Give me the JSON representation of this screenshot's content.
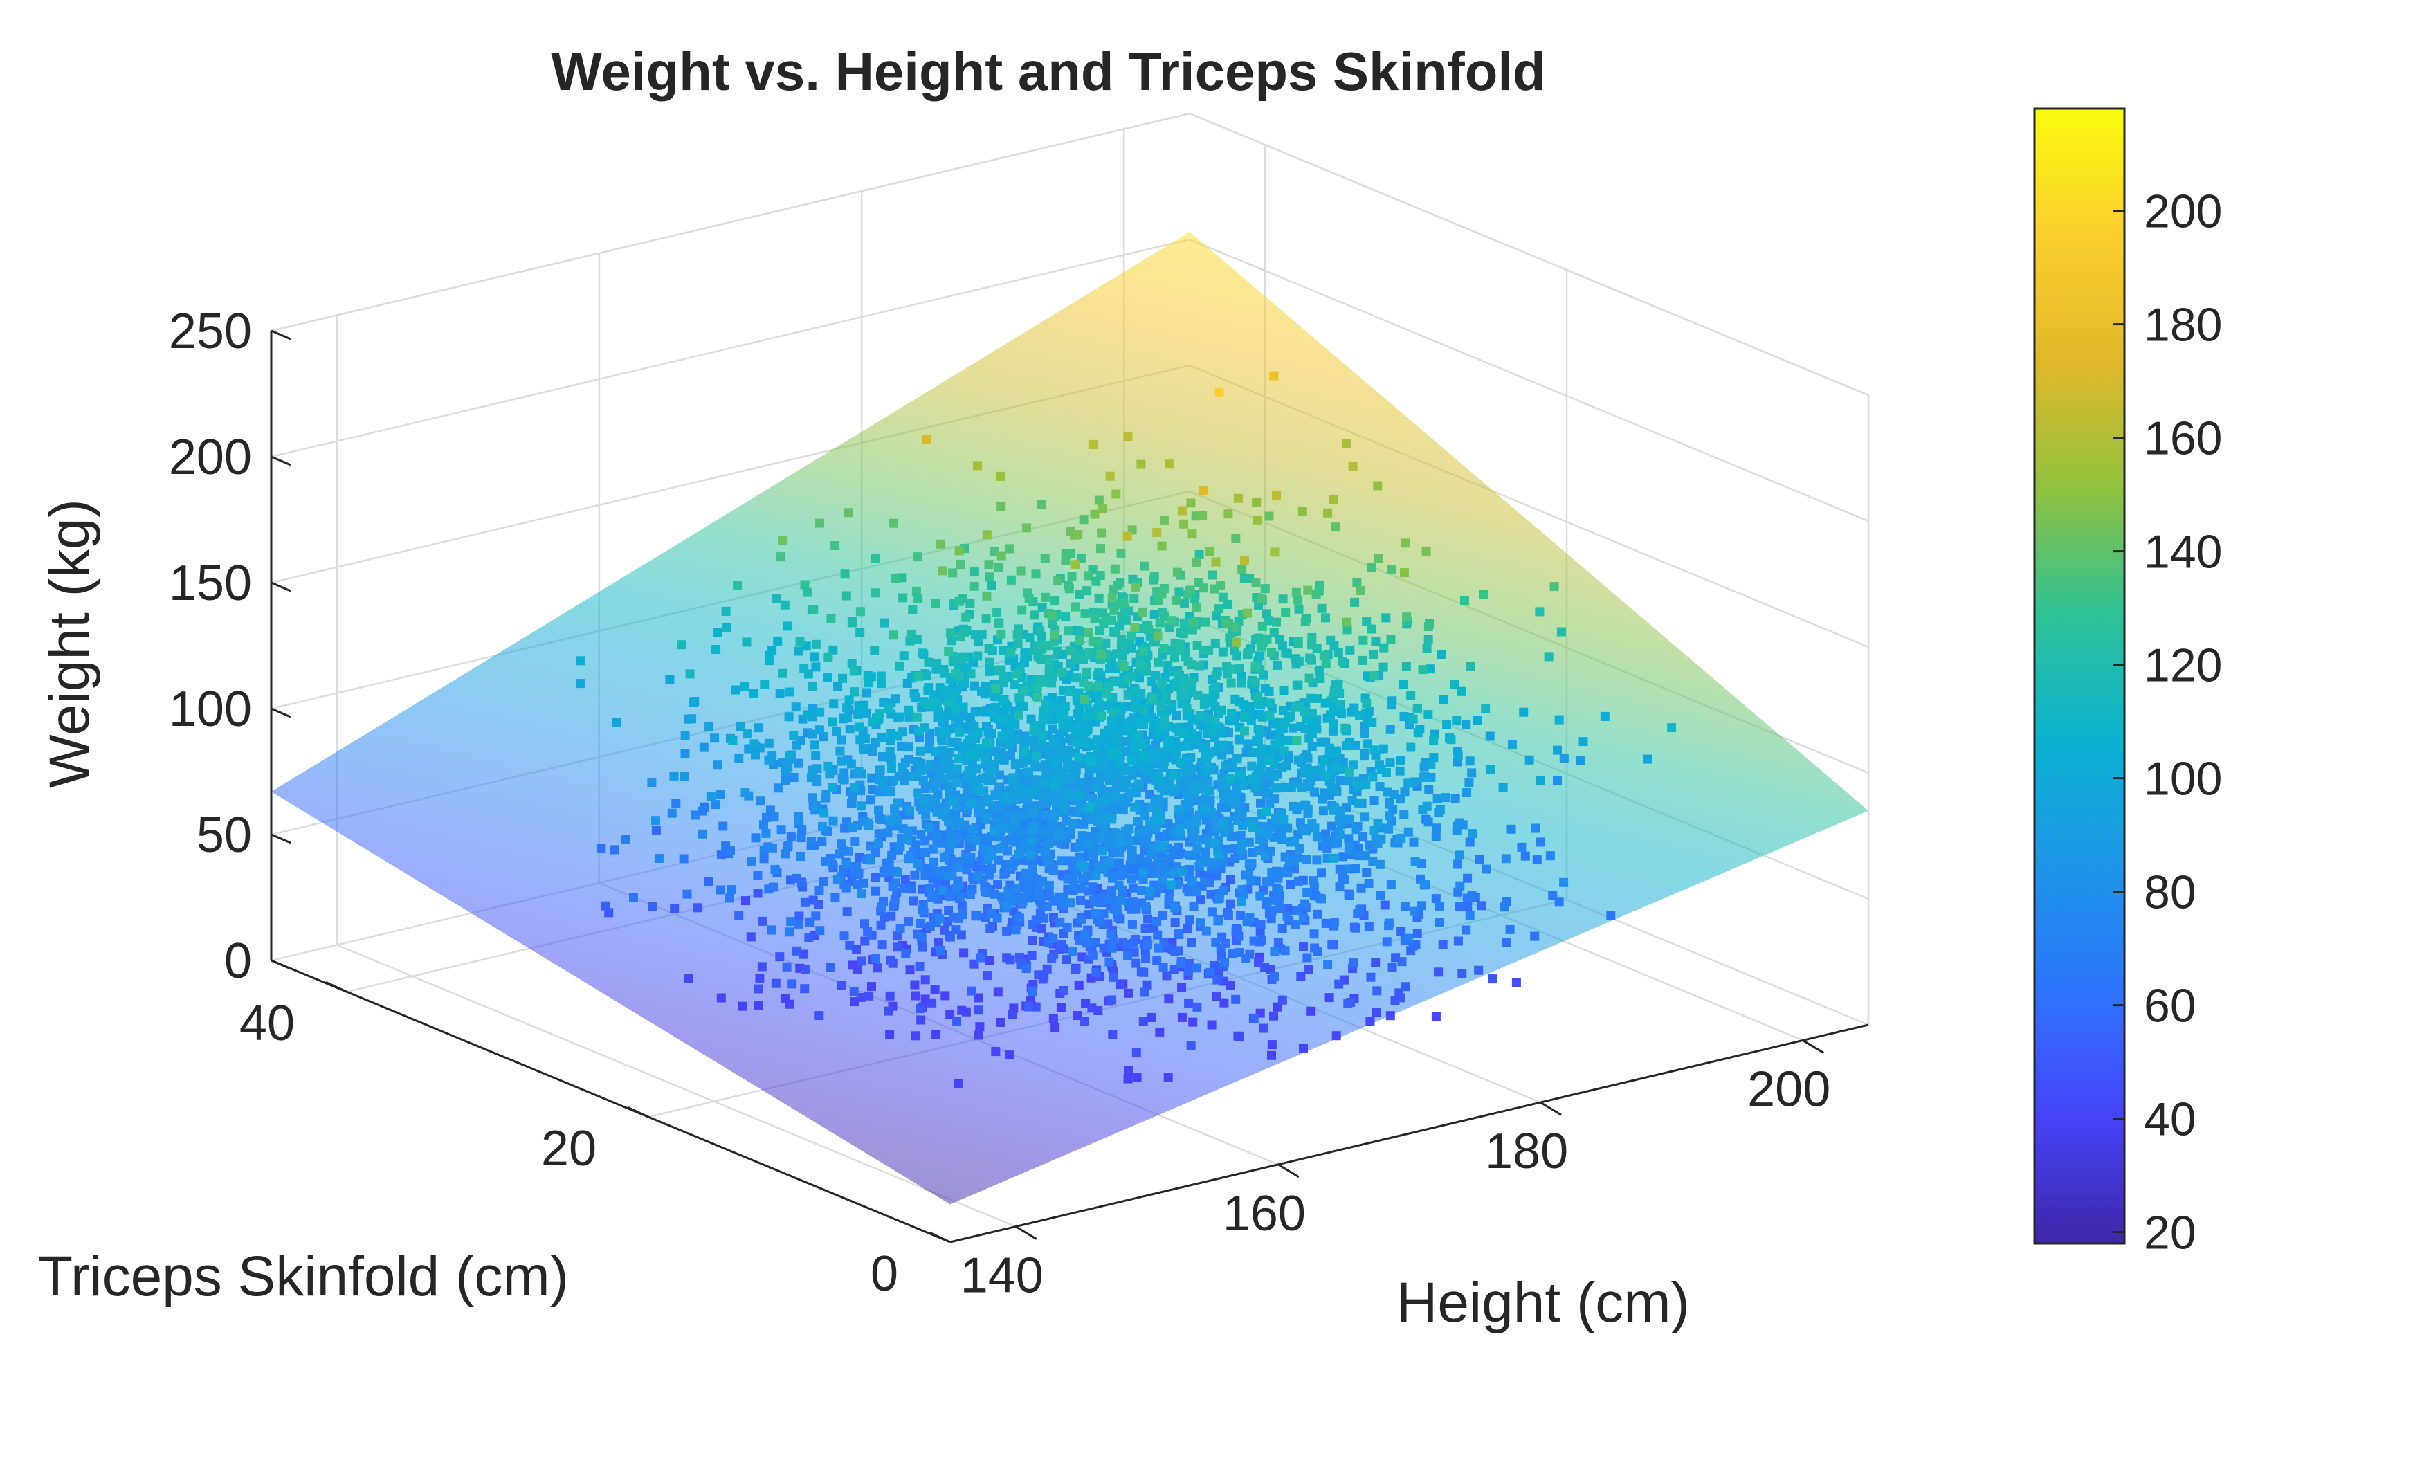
{
  "chart_data": {
    "type": "scatter3d",
    "title": "Weight vs. Height and Triceps Skinfold",
    "xlabel": "Height (cm)",
    "ylabel": "Triceps Skinfold (cm)",
    "zlabel": "Weight (kg)",
    "xlim": [
      135,
      205
    ],
    "ylim": [
      0,
      45
    ],
    "zlim": [
      0,
      250
    ],
    "x_ticks": [
      "140",
      "160",
      "180",
      "200"
    ],
    "y_ticks": [
      "0",
      "20",
      "40"
    ],
    "z_ticks": [
      "0",
      "50",
      "100",
      "150",
      "200",
      "250"
    ],
    "grid": true,
    "colormap": "parula",
    "colorbar": {
      "range": [
        18,
        218
      ],
      "ticks": [
        "20",
        "40",
        "60",
        "80",
        "100",
        "120",
        "140",
        "160",
        "180",
        "200"
      ],
      "colors": [
        "#3e26a8",
        "#4743f8",
        "#2d74fd",
        "#1d96e8",
        "#0bb2d0",
        "#2ec295",
        "#92c23e",
        "#e1b829",
        "#fcce2e",
        "#f9fb0e"
      ]
    },
    "fitted_plane": {
      "corners_weight": {
        "h135_t0": 15,
        "h205_t0": 85,
        "h135_t45": 67,
        "h205_t45": 203
      },
      "opacity": 0.5
    },
    "scatter_summary": {
      "n_points_approx": 4000,
      "height_mean": 170,
      "height_sd": 10,
      "triceps_mean": 20,
      "triceps_sd": 7,
      "weight_range": [
        40,
        215
      ],
      "marker": "filled square",
      "color_by": "weight"
    }
  }
}
